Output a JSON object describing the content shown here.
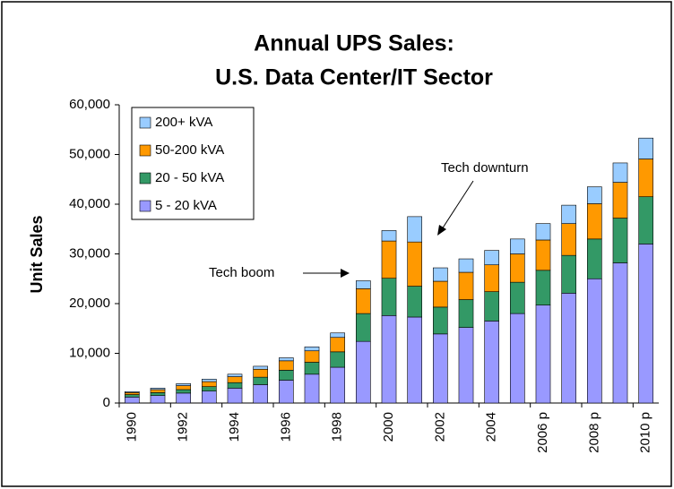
{
  "chart_data": {
    "type": "stacked_bar",
    "title": [
      "Annual UPS Sales:",
      "U.S. Data Center/IT Sector"
    ],
    "ylabel": "Unit Sales",
    "categories": [
      "1990",
      null,
      "1992",
      null,
      "1994",
      null,
      "1996",
      null,
      "1998",
      null,
      "2000",
      null,
      "2002",
      null,
      "2004",
      null,
      "2006 p",
      null,
      "2008 p",
      null,
      "2010 p"
    ],
    "series": [
      {
        "name": "5 - 20 kVA",
        "color": "#9999ff",
        "values": [
          1200,
          1500,
          2000,
          2400,
          3000,
          3700,
          4600,
          5800,
          7200,
          12400,
          17600,
          17300,
          13900,
          15200,
          16500,
          18000,
          19700,
          22100,
          25000,
          28200,
          32000
        ]
      },
      {
        "name": "20 - 50 kVA",
        "color": "#339966",
        "values": [
          500,
          600,
          700,
          900,
          1100,
          1500,
          2000,
          2400,
          3100,
          5600,
          7500,
          6200,
          5400,
          5600,
          5900,
          6300,
          7000,
          7600,
          8000,
          9000,
          9500
        ]
      },
      {
        "name": "50-200 kVA",
        "color": "#ff9900",
        "values": [
          400,
          600,
          800,
          1000,
          1200,
          1600,
          1900,
          2300,
          2900,
          5000,
          7500,
          8900,
          5200,
          5500,
          5400,
          5700,
          6100,
          6400,
          7100,
          7200,
          7600
        ]
      },
      {
        "name": "200+ kVA",
        "color": "#99ccff",
        "values": [
          200,
          300,
          400,
          500,
          500,
          600,
          600,
          800,
          900,
          1600,
          2100,
          5100,
          2700,
          2700,
          2900,
          3000,
          3300,
          3700,
          3400,
          3900,
          4200
        ]
      }
    ],
    "ylim": [
      0,
      60000
    ],
    "yticks": [
      0,
      {
        "value": 10000,
        "label": "10,000"
      },
      {
        "value": 20000,
        "label": "20,000"
      },
      {
        "value": 30000,
        "label": "30,000"
      },
      {
        "value": 40000,
        "label": "40,000"
      },
      {
        "value": 50000,
        "label": "50,000"
      },
      {
        "value": 60000,
        "label": "60,000"
      }
    ],
    "legend": "upper left",
    "annotations": [
      {
        "text": "Tech boom"
      },
      {
        "text": "Tech downturn"
      }
    ]
  }
}
